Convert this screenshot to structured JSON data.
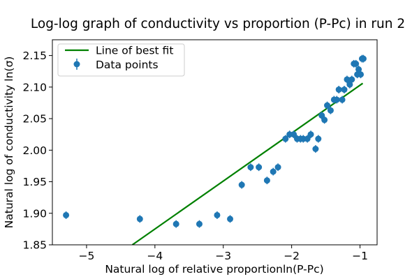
{
  "chart_data": {
    "type": "scatter",
    "title": "Log-log graph of conductivity vs proportion (P-Pc) in run 2",
    "xlabel": "Natural log of relative proportionln(P-Pc)",
    "ylabel": "Natural log of conductivity ln(σ)",
    "xlim": [
      -5.5,
      -0.75
    ],
    "ylim": [
      1.85,
      2.175
    ],
    "xticks": [
      -5,
      -4,
      -3,
      -2,
      -1
    ],
    "xtick_labels": [
      "−5",
      "−4",
      "−3",
      "−2",
      "−1"
    ],
    "yticks": [
      1.85,
      1.9,
      1.95,
      2.0,
      2.05,
      2.1,
      2.15
    ],
    "ytick_labels": [
      "1.85",
      "1.90",
      "1.95",
      "2.00",
      "2.05",
      "2.10",
      "2.15"
    ],
    "grid": false,
    "legend_position": "top-left",
    "series": [
      {
        "name": "Line of best fit",
        "kind": "line",
        "color": "#008000",
        "x": [
          -4.33,
          -0.96
        ],
        "y": [
          1.85,
          2.106
        ]
      },
      {
        "name": "Data points",
        "kind": "errorbar",
        "color": "#1f77b4",
        "yerr": 0.006,
        "points": [
          [
            -5.3,
            1.897
          ],
          [
            -4.22,
            1.891
          ],
          [
            -3.69,
            1.883
          ],
          [
            -3.35,
            1.883
          ],
          [
            -3.09,
            1.897
          ],
          [
            -2.9,
            1.891
          ],
          [
            -2.73,
            1.945
          ],
          [
            -2.6,
            1.973
          ],
          [
            -2.48,
            1.973
          ],
          [
            -2.36,
            1.952
          ],
          [
            -2.27,
            1.966
          ],
          [
            -2.2,
            1.973
          ],
          [
            -2.09,
            2.018
          ],
          [
            -2.03,
            2.025
          ],
          [
            -1.97,
            2.025
          ],
          [
            -1.92,
            2.018
          ],
          [
            -1.87,
            2.018
          ],
          [
            -1.83,
            2.018
          ],
          [
            -1.77,
            2.018
          ],
          [
            -1.72,
            2.025
          ],
          [
            -1.65,
            2.002
          ],
          [
            -1.61,
            2.018
          ],
          [
            -1.56,
            2.055
          ],
          [
            -1.52,
            2.048
          ],
          [
            -1.48,
            2.071
          ],
          [
            -1.43,
            2.063
          ],
          [
            -1.38,
            2.08
          ],
          [
            -1.34,
            2.08
          ],
          [
            -1.31,
            2.096
          ],
          [
            -1.26,
            2.08
          ],
          [
            -1.23,
            2.096
          ],
          [
            -1.19,
            2.112
          ],
          [
            -1.15,
            2.104
          ],
          [
            -1.12,
            2.112
          ],
          [
            -1.09,
            2.137
          ],
          [
            -1.06,
            2.137
          ],
          [
            -1.04,
            2.12
          ],
          [
            -1.02,
            2.128
          ],
          [
            -0.99,
            2.12
          ],
          [
            -0.97,
            2.145
          ],
          [
            -0.95,
            2.145
          ]
        ]
      }
    ]
  }
}
